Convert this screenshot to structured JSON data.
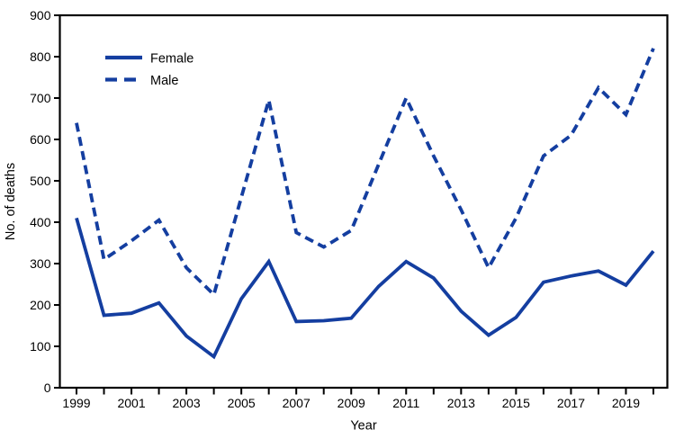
{
  "figure": {
    "ylabel": "No. of deaths",
    "xlabel": "Year"
  },
  "chart_data": {
    "type": "line",
    "title": "",
    "xlabel": "Year",
    "ylabel": "No. of deaths",
    "x": [
      1999,
      2000,
      2001,
      2002,
      2003,
      2004,
      2005,
      2006,
      2007,
      2008,
      2009,
      2010,
      2011,
      2012,
      2013,
      2014,
      2015,
      2016,
      2017,
      2018,
      2019,
      2020
    ],
    "series": [
      {
        "name": "Female",
        "style": "solid",
        "values": [
          410,
          175,
          180,
          205,
          125,
          75,
          215,
          305,
          160,
          162,
          168,
          245,
          305,
          265,
          185,
          127,
          170,
          255,
          270,
          282,
          248,
          330
        ]
      },
      {
        "name": "Male",
        "style": "dashed",
        "values": [
          640,
          310,
          355,
          405,
          290,
          225,
          460,
          695,
          375,
          340,
          380,
          540,
          700,
          560,
          430,
          290,
          410,
          560,
          610,
          725,
          660,
          820
        ]
      }
    ],
    "ylim": [
      0,
      900
    ],
    "yticks": [
      0,
      100,
      200,
      300,
      400,
      500,
      600,
      700,
      800,
      900
    ],
    "xtick_years": [
      1999,
      2000,
      2001,
      2002,
      2003,
      2004,
      2005,
      2006,
      2007,
      2008,
      2009,
      2010,
      2011,
      2012,
      2013,
      2014,
      2015,
      2016,
      2017,
      2018,
      2019,
      2020
    ],
    "xtick_labels": [
      "1999",
      "2001",
      "2003",
      "2005",
      "2007",
      "2009",
      "2011",
      "2013",
      "2015",
      "2017",
      "2019"
    ],
    "grid": false,
    "legend_position": "upper-left-inside",
    "line_color": "#143EA0",
    "axis_color": "#000000"
  }
}
